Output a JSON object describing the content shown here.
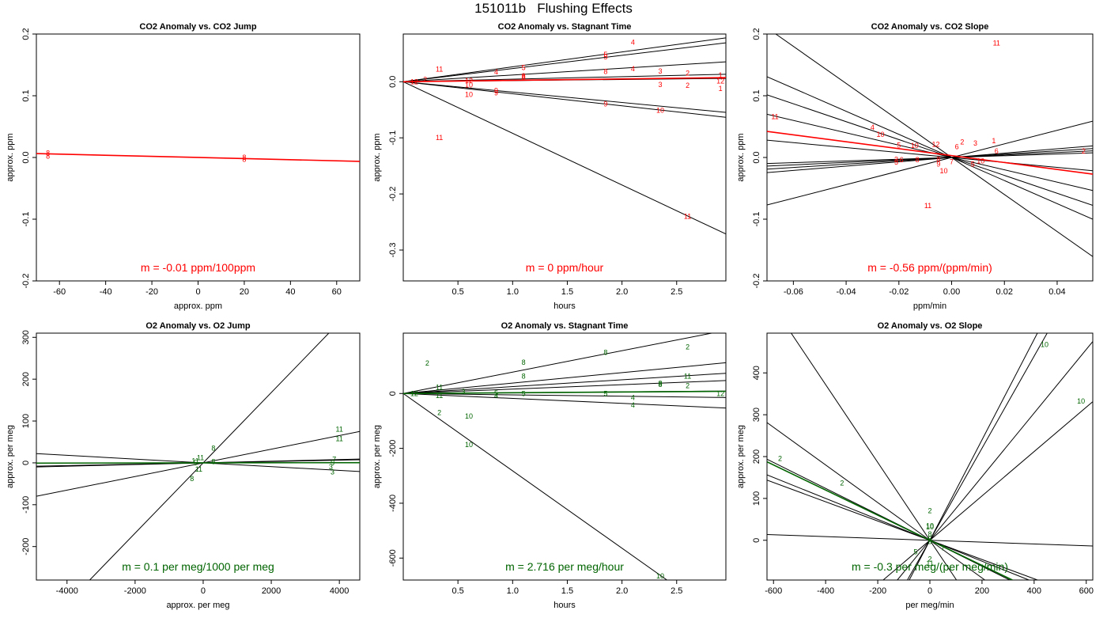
{
  "figure": {
    "title": "151011b   Flushing Effects"
  },
  "colors": {
    "co2": "#ff0000",
    "o2": "#006400",
    "line": "#000000",
    "axis": "#000000"
  },
  "chart_data": [
    {
      "id": "p1",
      "type": "scatter",
      "title": "CO2 Anomaly vs. CO2 Jump",
      "xlabel": "approx. ppm",
      "ylabel": "approx. ppm",
      "xlim": [
        -70,
        70
      ],
      "ylim": [
        -0.2,
        0.2
      ],
      "xticks": [
        -60,
        -40,
        -20,
        0,
        20,
        40,
        60
      ],
      "yticks": [
        -0.2,
        -0.1,
        0.0,
        0.1,
        0.2
      ],
      "yticklabels": [
        "-0.2",
        "-0.1",
        "0.0",
        "0.1",
        "0.2"
      ],
      "accent": "co2",
      "lines": [
        {
          "slope": -9e-05,
          "intercept": 0.0,
          "color": "co2"
        }
      ],
      "points": [
        {
          "x": -65,
          "y": 0.007,
          "label": "8"
        },
        {
          "x": -65,
          "y": 0.002,
          "label": "8"
        },
        {
          "x": 20,
          "y": 0.0,
          "label": "8"
        },
        {
          "x": 20,
          "y": -0.003,
          "label": "8"
        }
      ],
      "annotation": "m = -0.01 ppm/100ppm"
    },
    {
      "id": "p2",
      "type": "scatter",
      "title": "CO2 Anomaly vs. Stagnant Time",
      "xlabel": "hours",
      "ylabel": "approx. ppm",
      "xlim": [
        0.0,
        2.95
      ],
      "ylim": [
        -0.355,
        0.085
      ],
      "xticks": [
        0.5,
        1.0,
        1.5,
        2.0,
        2.5
      ],
      "xticklabels": [
        "0.5",
        "1.0",
        "1.5",
        "2.0",
        "2.5"
      ],
      "yticks": [
        -0.3,
        -0.2,
        -0.1,
        0.0
      ],
      "yticklabels": [
        "-0.3",
        "-0.2",
        "-0.1",
        "0.0"
      ],
      "accent": "co2",
      "lines": [
        {
          "slope": 0.0265,
          "intercept": 0
        },
        {
          "slope": 0.0235,
          "intercept": 0
        },
        {
          "slope": 0.012,
          "intercept": 0
        },
        {
          "slope": 0.0045,
          "intercept": 0
        },
        {
          "slope": 0.002,
          "intercept": 0
        },
        {
          "slope": -0.0185,
          "intercept": 0
        },
        {
          "slope": -0.0215,
          "intercept": 0
        },
        {
          "slope": -0.092,
          "intercept": 0
        },
        {
          "slope": 0.0025,
          "intercept": 0,
          "color": "co2"
        }
      ],
      "points": [
        {
          "x": 2.1,
          "y": 0.07,
          "label": "4"
        },
        {
          "x": 1.85,
          "y": 0.048,
          "label": "5"
        },
        {
          "x": 1.85,
          "y": 0.044,
          "label": "5"
        },
        {
          "x": 0.33,
          "y": 0.022,
          "label": "11"
        },
        {
          "x": 1.1,
          "y": 0.025,
          "label": "5"
        },
        {
          "x": 0.85,
          "y": 0.017,
          "label": "4"
        },
        {
          "x": 2.1,
          "y": 0.023,
          "label": "4"
        },
        {
          "x": 1.85,
          "y": 0.018,
          "label": "8"
        },
        {
          "x": 2.35,
          "y": 0.019,
          "label": "3"
        },
        {
          "x": 2.6,
          "y": 0.015,
          "label": "2"
        },
        {
          "x": 2.9,
          "y": 0.012,
          "label": "1"
        },
        {
          "x": 1.1,
          "y": 0.01,
          "label": "8"
        },
        {
          "x": 1.1,
          "y": 0.008,
          "label": "8"
        },
        {
          "x": 0.2,
          "y": 0.004,
          "label": "2"
        },
        {
          "x": 0.1,
          "y": 0.0,
          "label": "12"
        },
        {
          "x": 0.6,
          "y": 0.002,
          "label": "12"
        },
        {
          "x": 0.6,
          "y": -0.006,
          "label": "10"
        },
        {
          "x": 2.9,
          "y": 0.001,
          "label": "12"
        },
        {
          "x": 2.35,
          "y": -0.005,
          "label": "3"
        },
        {
          "x": 2.6,
          "y": -0.007,
          "label": "2"
        },
        {
          "x": 2.9,
          "y": -0.012,
          "label": "1"
        },
        {
          "x": 0.85,
          "y": -0.016,
          "label": "9"
        },
        {
          "x": 0.85,
          "y": -0.02,
          "label": "9"
        },
        {
          "x": 0.6,
          "y": -0.023,
          "label": "10"
        },
        {
          "x": 1.85,
          "y": -0.04,
          "label": "9"
        },
        {
          "x": 2.35,
          "y": -0.051,
          "label": "10"
        },
        {
          "x": 0.33,
          "y": -0.1,
          "label": "11"
        },
        {
          "x": 2.6,
          "y": -0.24,
          "label": "11"
        }
      ],
      "annotation": "m = 0 ppm/hour"
    },
    {
      "id": "p3",
      "type": "scatter",
      "title": "CO2 Anomaly vs. CO2 Slope",
      "xlabel": "ppm/min",
      "ylabel": "approx. ppm",
      "xlim": [
        -0.07,
        0.0535
      ],
      "ylim": [
        -0.2,
        0.2
      ],
      "xticks": [
        -0.06,
        -0.04,
        -0.02,
        0.0,
        0.02,
        0.04
      ],
      "xticklabels": [
        "-0.06",
        "-0.04",
        "-0.02",
        "0.00",
        "0.02",
        "0.04"
      ],
      "yticks": [
        -0.2,
        -0.1,
        0.0,
        0.1,
        0.2
      ],
      "yticklabels": [
        "-0.2",
        "-0.1",
        "0.0",
        "0.1",
        "0.2"
      ],
      "accent": "co2",
      "lines": [
        {
          "slope": -3.0,
          "intercept": 0
        },
        {
          "slope": -1.87,
          "intercept": 0
        },
        {
          "slope": -1.45,
          "intercept": 0
        },
        {
          "slope": -1.0,
          "intercept": 0
        },
        {
          "slope": -0.4,
          "intercept": 0
        },
        {
          "slope": 1.1,
          "intercept": 0
        },
        {
          "slope": 0.35,
          "intercept": 0
        },
        {
          "slope": 0.27,
          "intercept": 0
        },
        {
          "slope": 0.2,
          "intercept": 0
        },
        {
          "slope": 0.14,
          "intercept": 0
        },
        {
          "slope": -0.56,
          "intercept": 0.003,
          "color": "co2"
        }
      ],
      "points": [
        {
          "x": 0.017,
          "y": 0.185,
          "label": "11"
        },
        {
          "x": -0.067,
          "y": 0.066,
          "label": "11"
        },
        {
          "x": -0.03,
          "y": 0.049,
          "label": "4"
        },
        {
          "x": -0.027,
          "y": 0.037,
          "label": "10"
        },
        {
          "x": 0.016,
          "y": 0.027,
          "label": "1"
        },
        {
          "x": -0.02,
          "y": 0.02,
          "label": "5"
        },
        {
          "x": -0.014,
          "y": 0.019,
          "label": "10"
        },
        {
          "x": 0.009,
          "y": 0.023,
          "label": "3"
        },
        {
          "x": 0.004,
          "y": 0.025,
          "label": "2"
        },
        {
          "x": -0.006,
          "y": 0.021,
          "label": "12"
        },
        {
          "x": 0.002,
          "y": 0.017,
          "label": "6"
        },
        {
          "x": 0.017,
          "y": 0.01,
          "label": "6"
        },
        {
          "x": 0.05,
          "y": 0.01,
          "label": "2"
        },
        {
          "x": -0.021,
          "y": -0.003,
          "label": "3"
        },
        {
          "x": -0.019,
          "y": -0.004,
          "label": "6"
        },
        {
          "x": -0.021,
          "y": -0.008,
          "label": "5"
        },
        {
          "x": -0.013,
          "y": -0.004,
          "label": "8"
        },
        {
          "x": 0.0,
          "y": -0.007,
          "label": "7"
        },
        {
          "x": 0.011,
          "y": -0.006,
          "label": "10"
        },
        {
          "x": -0.005,
          "y": -0.011,
          "label": "9"
        },
        {
          "x": -0.003,
          "y": -0.022,
          "label": "10"
        },
        {
          "x": 0.008,
          "y": -0.011,
          "label": "5"
        },
        {
          "x": -0.009,
          "y": -0.078,
          "label": "11"
        },
        {
          "x": -0.005,
          "y": -0.003,
          "label": "8"
        }
      ],
      "annotation": "m = -0.56 ppm/(ppm/min)"
    },
    {
      "id": "p4",
      "type": "scatter",
      "title": "O2 Anomaly vs. O2 Jump",
      "xlabel": "approx. per meg",
      "ylabel": "approx. per meg",
      "xlim": [
        -4900,
        4600
      ],
      "ylim": [
        -280,
        310
      ],
      "xticks": [
        -4000,
        -2000,
        0,
        2000,
        4000
      ],
      "yticks": [
        -200,
        -100,
        0,
        100,
        200,
        300
      ],
      "accent": "o2",
      "lines": [
        {
          "slope": 0.084,
          "intercept": 0
        },
        {
          "slope": 0.0163,
          "intercept": 0
        },
        {
          "slope": 0.0016,
          "intercept": 0
        },
        {
          "slope": -0.0045,
          "intercept": 0
        },
        {
          "slope": 0.002,
          "intercept": 0
        },
        {
          "slope": 0.00012,
          "intercept": 0,
          "color": "o2"
        }
      ],
      "points": [
        {
          "x": 4000,
          "y": 80,
          "label": "11"
        },
        {
          "x": 4000,
          "y": 58,
          "label": "11"
        },
        {
          "x": 300,
          "y": 35,
          "label": "8"
        },
        {
          "x": -80,
          "y": 12,
          "label": "11"
        },
        {
          "x": -230,
          "y": 5,
          "label": "11"
        },
        {
          "x": -230,
          "y": 0,
          "label": "5"
        },
        {
          "x": 300,
          "y": 3,
          "label": "8"
        },
        {
          "x": 3850,
          "y": 8,
          "label": "7"
        },
        {
          "x": 3800,
          "y": 0,
          "label": "5"
        },
        {
          "x": 3750,
          "y": -10,
          "label": "3"
        },
        {
          "x": 3800,
          "y": -22,
          "label": "3"
        },
        {
          "x": -130,
          "y": -15,
          "label": "11"
        },
        {
          "x": -330,
          "y": -38,
          "label": "8"
        }
      ],
      "annotation": "m = 0.1 per meg/1000 per meg"
    },
    {
      "id": "p5",
      "type": "scatter",
      "title": "O2 Anomaly vs. Stagnant Time",
      "xlabel": "hours",
      "ylabel": "approx. per meg",
      "xlim": [
        0.0,
        2.95
      ],
      "ylim": [
        -680,
        220
      ],
      "xticks": [
        0.5,
        1.0,
        1.5,
        2.0,
        2.5
      ],
      "xticklabels": [
        "0.5",
        "1.0",
        "1.5",
        "2.0",
        "2.5"
      ],
      "yticks": [
        -600,
        -400,
        -200,
        0
      ],
      "accent": "o2",
      "lines": [
        {
          "slope": 78,
          "intercept": 0
        },
        {
          "slope": 38,
          "intercept": 0
        },
        {
          "slope": 25,
          "intercept": 0
        },
        {
          "slope": 16,
          "intercept": 0
        },
        {
          "slope": 3,
          "intercept": 0
        },
        {
          "slope": -5,
          "intercept": 0
        },
        {
          "slope": -18,
          "intercept": 0
        },
        {
          "slope": -282,
          "intercept": 0
        },
        {
          "slope": 2.716,
          "intercept": 0,
          "color": "o2"
        }
      ],
      "points": [
        {
          "x": 2.6,
          "y": 170,
          "label": "2"
        },
        {
          "x": 1.85,
          "y": 150,
          "label": "8"
        },
        {
          "x": 0.22,
          "y": 110,
          "label": "2"
        },
        {
          "x": 1.1,
          "y": 113,
          "label": "8"
        },
        {
          "x": 1.1,
          "y": 63,
          "label": "8"
        },
        {
          "x": 2.6,
          "y": 63,
          "label": "11"
        },
        {
          "x": 2.35,
          "y": 37,
          "label": "8"
        },
        {
          "x": 2.35,
          "y": 32,
          "label": "8"
        },
        {
          "x": 2.6,
          "y": 28,
          "label": "2"
        },
        {
          "x": 0.33,
          "y": 22,
          "label": "11"
        },
        {
          "x": 0.55,
          "y": 6,
          "label": "3"
        },
        {
          "x": 0.85,
          "y": 1,
          "label": "5"
        },
        {
          "x": 1.1,
          "y": 0,
          "label": "5"
        },
        {
          "x": 1.85,
          "y": 0,
          "label": "5"
        },
        {
          "x": 0.1,
          "y": 0,
          "label": "12"
        },
        {
          "x": 2.9,
          "y": -1,
          "label": "12"
        },
        {
          "x": 0.85,
          "y": -8,
          "label": "4"
        },
        {
          "x": 0.33,
          "y": -8,
          "label": "11"
        },
        {
          "x": 2.1,
          "y": -15,
          "label": "4"
        },
        {
          "x": 2.1,
          "y": -42,
          "label": "4"
        },
        {
          "x": 0.33,
          "y": -70,
          "label": "2"
        },
        {
          "x": 0.6,
          "y": -83,
          "label": "10"
        },
        {
          "x": 0.6,
          "y": -187,
          "label": "10"
        },
        {
          "x": 2.35,
          "y": -665,
          "label": "10"
        }
      ],
      "annotation": "m = 2.716 per meg/hour"
    },
    {
      "id": "p6",
      "type": "scatter",
      "title": "O2 Anomaly vs. O2 Slope",
      "xlabel": "per meg/min",
      "ylabel": "approx. per meg",
      "xlim": [
        -625,
        625
      ],
      "ylim": [
        -95,
        495
      ],
      "xticks": [
        -600,
        -400,
        -200,
        0,
        200,
        400,
        600
      ],
      "yticks": [
        0,
        100,
        200,
        300,
        400
      ],
      "accent": "o2",
      "lines": [
        {
          "slope": -0.93,
          "intercept": 0
        },
        {
          "slope": -0.45,
          "intercept": 0
        },
        {
          "slope": -0.31,
          "intercept": 0
        },
        {
          "slope": -0.25,
          "intercept": 0
        },
        {
          "slope": -0.23,
          "intercept": 0
        },
        {
          "slope": -0.022,
          "intercept": 0
        },
        {
          "slope": 1.2,
          "intercept": 0
        },
        {
          "slope": 1.1,
          "intercept": 0
        },
        {
          "slope": 0.76,
          "intercept": 0
        },
        {
          "slope": 0.53,
          "intercept": 0
        },
        {
          "slope": -0.3,
          "intercept": 0,
          "color": "o2"
        }
      ],
      "points": [
        {
          "x": 440,
          "y": 468,
          "label": "10"
        },
        {
          "x": 580,
          "y": 332,
          "label": "10"
        },
        {
          "x": -575,
          "y": 195,
          "label": "2"
        },
        {
          "x": -337,
          "y": 137,
          "label": "2"
        },
        {
          "x": 0,
          "y": 70,
          "label": "2"
        },
        {
          "x": 0,
          "y": 35,
          "label": "10"
        },
        {
          "x": 0,
          "y": 32,
          "label": "10"
        },
        {
          "x": 0,
          "y": 15,
          "label": "8"
        },
        {
          "x": 0,
          "y": 3,
          "label": "5"
        },
        {
          "x": 0,
          "y": -3,
          "label": "8"
        },
        {
          "x": -55,
          "y": -28,
          "label": "5"
        },
        {
          "x": 50,
          "y": -18,
          "label": "7"
        },
        {
          "x": 0,
          "y": -45,
          "label": "2"
        },
        {
          "x": 0,
          "y": -55,
          "label": "11"
        }
      ],
      "annotation": "m = -0.3 per meg/(per meg/min)"
    }
  ]
}
